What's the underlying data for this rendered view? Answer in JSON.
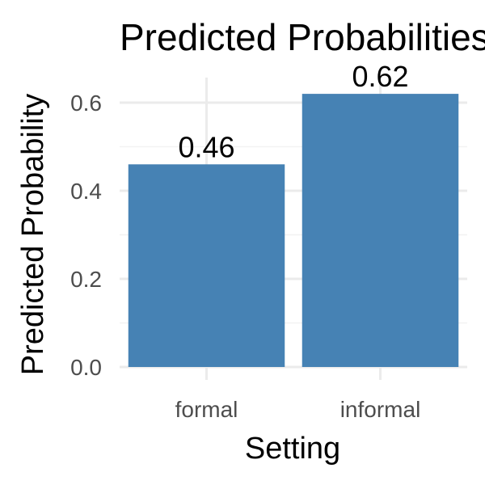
{
  "chart_data": {
    "type": "bar",
    "title": "Predicted Probabilities",
    "xlabel": "Setting",
    "ylabel": "Predicted Probability",
    "categories": [
      "formal",
      "informal"
    ],
    "values": [
      0.46,
      0.62
    ],
    "data_labels": [
      "0.46",
      "0.62"
    ],
    "ylim": [
      0,
      0.62
    ],
    "y_ticks": [
      0.0,
      0.2,
      0.4,
      0.6
    ],
    "y_tick_labels": [
      "0.0",
      "0.2",
      "0.4",
      "0.6"
    ],
    "bar_color": "#4682b4",
    "grid": true,
    "legend": "none"
  }
}
